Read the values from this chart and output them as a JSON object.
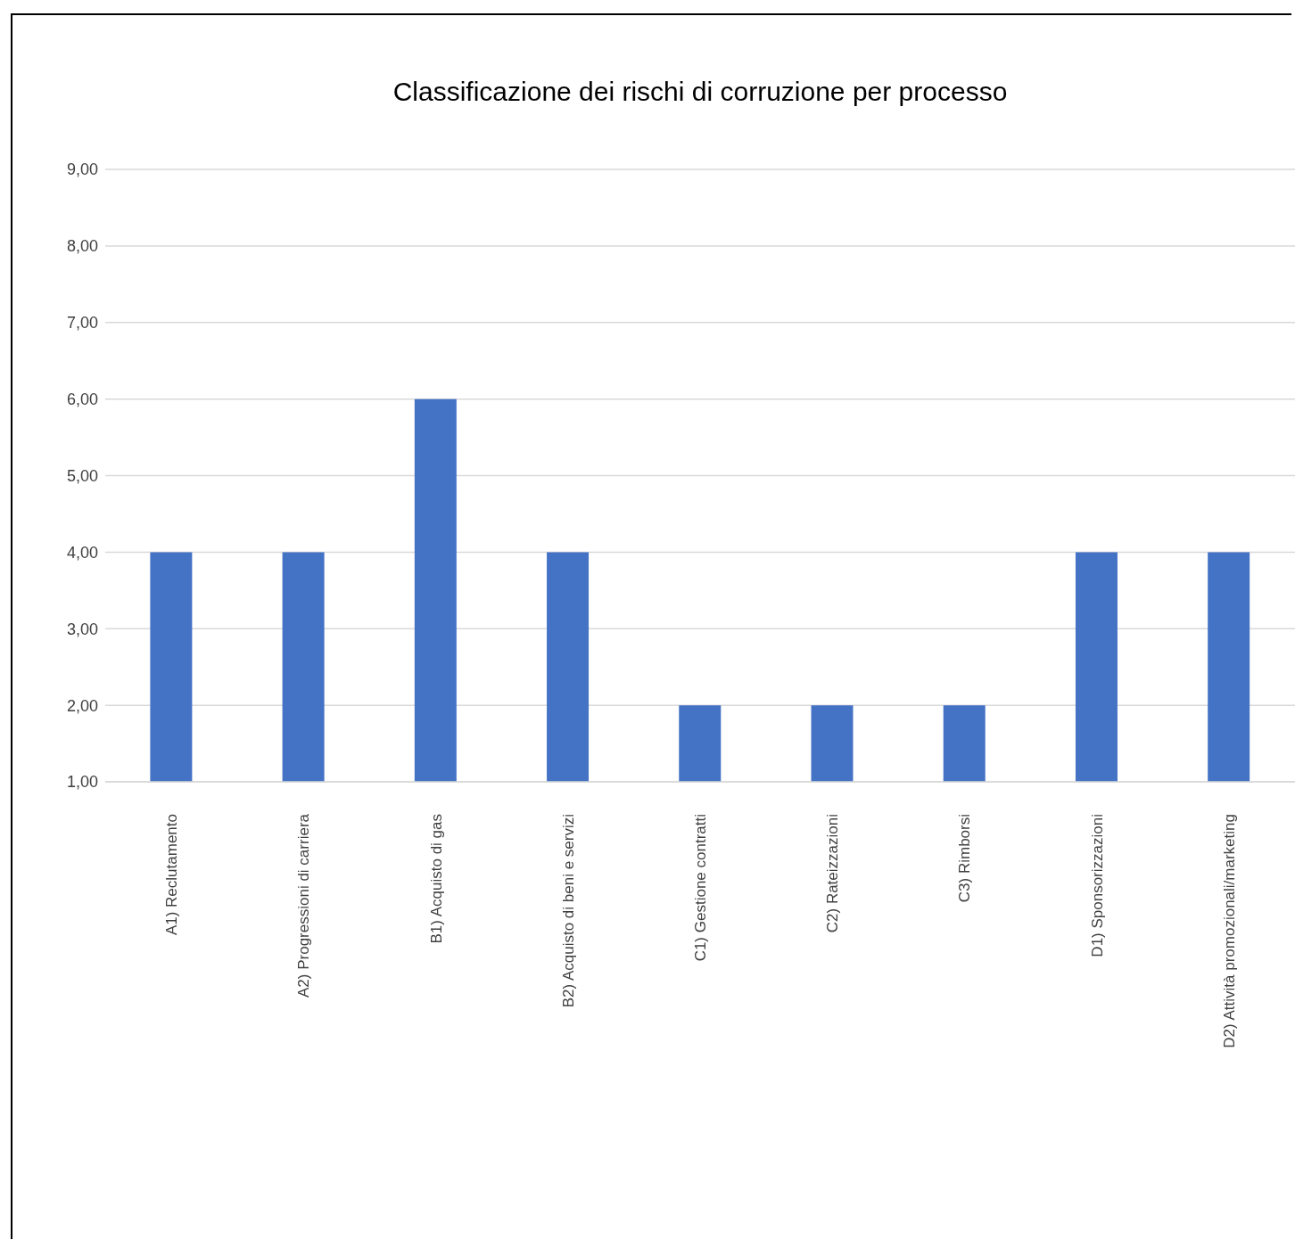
{
  "chart_data": {
    "type": "bar",
    "title": "Classificazione dei rischi di corruzione per processo",
    "categories": [
      "A1) Reclutamento",
      "A2) Progressioni di carriera",
      "B1) Acquisto di gas",
      "B2) Acquisto di beni e servizi",
      "C1) Gestione contratti",
      "C2) Rateizzazioni",
      "C3) Rimborsi",
      "D1) Sponsorizzazioni",
      "D2) Attività promozionali/marketing"
    ],
    "values": [
      4,
      4,
      6,
      4,
      2,
      2,
      2,
      4,
      4
    ],
    "color": "#4472c4",
    "ylim": [
      1,
      9
    ],
    "yticks": [
      {
        "value": 1,
        "label": "1,00"
      },
      {
        "value": 2,
        "label": "2,00"
      },
      {
        "value": 3,
        "label": "3,00"
      },
      {
        "value": 4,
        "label": "4,00"
      },
      {
        "value": 5,
        "label": "5,00"
      },
      {
        "value": 6,
        "label": "6,00"
      },
      {
        "value": 7,
        "label": "7,00"
      },
      {
        "value": 8,
        "label": "8,00"
      },
      {
        "value": 9,
        "label": "9,00"
      }
    ],
    "grid": "y",
    "legend": false
  }
}
